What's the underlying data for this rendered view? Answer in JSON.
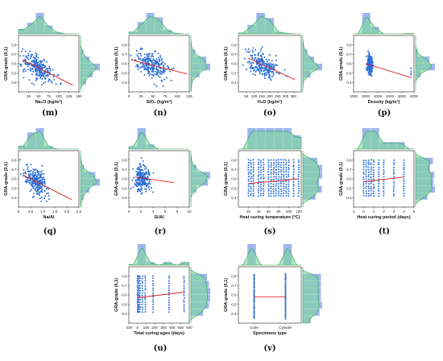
{
  "figure": {
    "colors": {
      "points": "#2b6fd8",
      "fit_line": "#e02020",
      "hist_blue": "#7d9fea",
      "hist_green": "#7fd89a",
      "kde_green": "#2e9e55",
      "axis": "#222222"
    }
  },
  "chart_data": [
    {
      "id": "m",
      "panel_label": "(m)",
      "type": "scatter",
      "xlabel": "Na₂O (kg/m³)",
      "ylabel": "GRA-grade (0,1)",
      "xlim": [
        0,
        150
      ],
      "ylim": [
        0.3,
        0.9
      ],
      "xticks": [
        0,
        25,
        50,
        75,
        100,
        125,
        150
      ],
      "yticks": [
        0.4,
        0.5,
        0.6,
        0.7,
        0.8
      ],
      "xtick_labels": [
        "",
        "25",
        "50",
        "75",
        "100",
        "125",
        "150"
      ],
      "cloud": {
        "x_center": 50,
        "x_spread": 28,
        "y_center": 0.58,
        "y_spread": 0.08,
        "n": 240
      },
      "fit": {
        "x": [
          10,
          135
        ],
        "y": [
          0.64,
          0.37
        ]
      }
    },
    {
      "id": "n",
      "panel_label": "(n)",
      "type": "scatter",
      "xlabel": "SiO₂ (kg/m³)",
      "ylabel": "GRA-grade (0,1)",
      "xlim": [
        0,
        125
      ],
      "ylim": [
        0.3,
        0.9
      ],
      "xticks": [
        0,
        25,
        50,
        75,
        100,
        125
      ],
      "yticks": [
        0.4,
        0.5,
        0.6,
        0.7,
        0.8
      ],
      "xtick_labels": [
        "0",
        "25",
        "50",
        "75",
        "100",
        "125"
      ],
      "cloud": {
        "x_center": 45,
        "x_spread": 25,
        "y_center": 0.58,
        "y_spread": 0.08,
        "n": 240
      },
      "fit": {
        "x": [
          5,
          120
        ],
        "y": [
          0.64,
          0.49
        ]
      }
    },
    {
      "id": "o",
      "panel_label": "(o)",
      "type": "scatter",
      "xlabel": "H₂O (kg/m³)",
      "ylabel": "GRA-grade (0,1)",
      "xlim": [
        0,
        400
      ],
      "ylim": [
        0.3,
        0.9
      ],
      "xticks": [
        50,
        100,
        150,
        200,
        250,
        300,
        350
      ],
      "yticks": [
        0.4,
        0.5,
        0.6,
        0.7,
        0.8
      ],
      "xtick_labels": [
        "50",
        "100",
        "150",
        "200",
        "250",
        "300",
        "350"
      ],
      "cloud": {
        "x_center": 150,
        "x_spread": 70,
        "y_center": 0.58,
        "y_spread": 0.08,
        "n": 240
      },
      "fit": {
        "x": [
          60,
          360
        ],
        "y": [
          0.66,
          0.43
        ]
      }
    },
    {
      "id": "p",
      "panel_label": "(p)",
      "type": "scatter",
      "xlabel": "Density (kg/m³)",
      "ylabel": "GRA-grade (0,1)",
      "xlim": [
        1000,
        6000
      ],
      "ylim": [
        0.3,
        0.9
      ],
      "xticks": [
        1000,
        2000,
        3000,
        4000,
        5000,
        6000
      ],
      "yticks": [
        0.4,
        0.5,
        0.6,
        0.7,
        0.8
      ],
      "xtick_labels": [
        "1000",
        "2000",
        "3000",
        "4000",
        "5000",
        "6000"
      ],
      "cloud": {
        "x_center": 2350,
        "x_spread": 150,
        "y_center": 0.58,
        "y_spread": 0.07,
        "n": 220
      },
      "extra_points": {
        "x": [
          5750,
          5750,
          5750,
          5750
        ],
        "y": [
          0.48,
          0.5,
          0.52,
          0.55
        ]
      },
      "fit": {
        "x": [
          2000,
          5800
        ],
        "y": [
          0.6,
          0.45
        ]
      }
    },
    {
      "id": "q",
      "panel_label": "(q)",
      "type": "scatter",
      "xlabel": "Na/Al",
      "ylabel": "GRA-grade (0,1)",
      "xlim": [
        0,
        2.5
      ],
      "ylim": [
        0.3,
        0.9
      ],
      "xticks": [
        0,
        0.5,
        1,
        1.5,
        2,
        2.5
      ],
      "yticks": [
        0.4,
        0.5,
        0.6,
        0.7,
        0.8
      ],
      "xtick_labels": [
        "0",
        "0.5",
        "1.0",
        "1.5",
        "2.0",
        "2.5"
      ],
      "cloud": {
        "x_center": 0.75,
        "x_spread": 0.35,
        "y_center": 0.58,
        "y_spread": 0.08,
        "n": 240
      },
      "fit": {
        "x": [
          0.2,
          2.2
        ],
        "y": [
          0.64,
          0.38
        ]
      }
    },
    {
      "id": "r",
      "panel_label": "(r)",
      "type": "scatter",
      "xlabel": "Si/Al",
      "ylabel": "GRA-grade (0,1)",
      "xlim": [
        0,
        10
      ],
      "ylim": [
        0.3,
        0.9
      ],
      "xticks": [
        0,
        2,
        4,
        6,
        8,
        10
      ],
      "yticks": [
        0.4,
        0.5,
        0.6,
        0.7,
        0.8
      ],
      "xtick_labels": [
        "0",
        "2",
        "4",
        "6",
        "8",
        "10"
      ],
      "cloud": {
        "x_center": 2.2,
        "x_spread": 1.0,
        "y_center": 0.58,
        "y_spread": 0.08,
        "n": 230
      },
      "fit": {
        "x": [
          1.0,
          7.5
        ],
        "y": [
          0.62,
          0.56
        ]
      }
    },
    {
      "id": "s",
      "panel_label": "(s)",
      "type": "scatter",
      "xlabel": "Heat curing temperature (°C)",
      "ylabel": "GRA-grade (0,1)",
      "xlim": [
        0,
        125
      ],
      "ylim": [
        0.3,
        0.9
      ],
      "xticks": [
        20,
        40,
        60,
        80,
        100,
        120
      ],
      "yticks": [
        0.4,
        0.5,
        0.6,
        0.7,
        0.8
      ],
      "xtick_labels": [
        "20",
        "40",
        "60",
        "80",
        "100",
        "120"
      ],
      "columns": [
        20,
        25,
        30,
        40,
        45,
        50,
        60,
        65,
        70,
        75,
        80,
        85,
        90,
        95,
        100,
        110,
        120
      ],
      "column_range": [
        0.42,
        0.8
      ],
      "fit": {
        "x": [
          20,
          120
        ],
        "y": [
          0.55,
          0.6
        ]
      }
    },
    {
      "id": "t",
      "panel_label": "(t)",
      "type": "scatter",
      "xlabel": "Heat curing period (days)",
      "ylabel": "GRA-grade (0,1)",
      "xlim": [
        -1,
        5
      ],
      "ylim": [
        0.3,
        0.9
      ],
      "xticks": [
        -1,
        0,
        1,
        2,
        3,
        4,
        5
      ],
      "yticks": [
        0.4,
        0.5,
        0.6,
        0.7,
        0.8
      ],
      "xtick_labels": [
        "-1",
        "0",
        "1",
        "2",
        "3",
        "4",
        "5"
      ],
      "columns": [
        0,
        0.25,
        0.5,
        0.75,
        1,
        1.5,
        2,
        3,
        4
      ],
      "column_range": [
        0.42,
        0.8
      ],
      "fit": {
        "x": [
          0,
          4
        ],
        "y": [
          0.57,
          0.62
        ]
      }
    },
    {
      "id": "u",
      "panel_label": "(u)",
      "type": "scatter",
      "xlabel": "Total curing ages (days)",
      "ylabel": "GRA-grade (0,1)",
      "xlim": [
        -100,
        600
      ],
      "ylim": [
        0.3,
        0.9
      ],
      "xticks": [
        -100,
        0,
        100,
        200,
        300,
        400,
        500,
        600
      ],
      "yticks": [
        0.4,
        0.5,
        0.6,
        0.7,
        0.8
      ],
      "xtick_labels": [
        "-100",
        "0",
        "100",
        "200",
        "300",
        "400",
        "500",
        "600"
      ],
      "columns": [
        1,
        3,
        7,
        14,
        28,
        56,
        90,
        180,
        365,
        540
      ],
      "column_range": [
        0.42,
        0.8
      ],
      "fit": {
        "x": [
          0,
          540
        ],
        "y": [
          0.57,
          0.63
        ]
      }
    },
    {
      "id": "v",
      "panel_label": "(v)",
      "type": "scatter",
      "xlabel": "Specimens type",
      "ylabel": "GRA-grade (0,1)",
      "xlim": [
        -0.5,
        1.5
      ],
      "ylim": [
        0.3,
        0.9
      ],
      "xticks": [
        0,
        1
      ],
      "yticks": [
        0.4,
        0.5,
        0.6,
        0.7,
        0.8
      ],
      "xtick_labels": [
        "Cube",
        "Cylinder"
      ],
      "columns": [
        0,
        1
      ],
      "column_range": [
        0.35,
        0.82
      ],
      "fit": {
        "x": [
          0,
          1
        ],
        "y": [
          0.58,
          0.58
        ]
      }
    }
  ]
}
